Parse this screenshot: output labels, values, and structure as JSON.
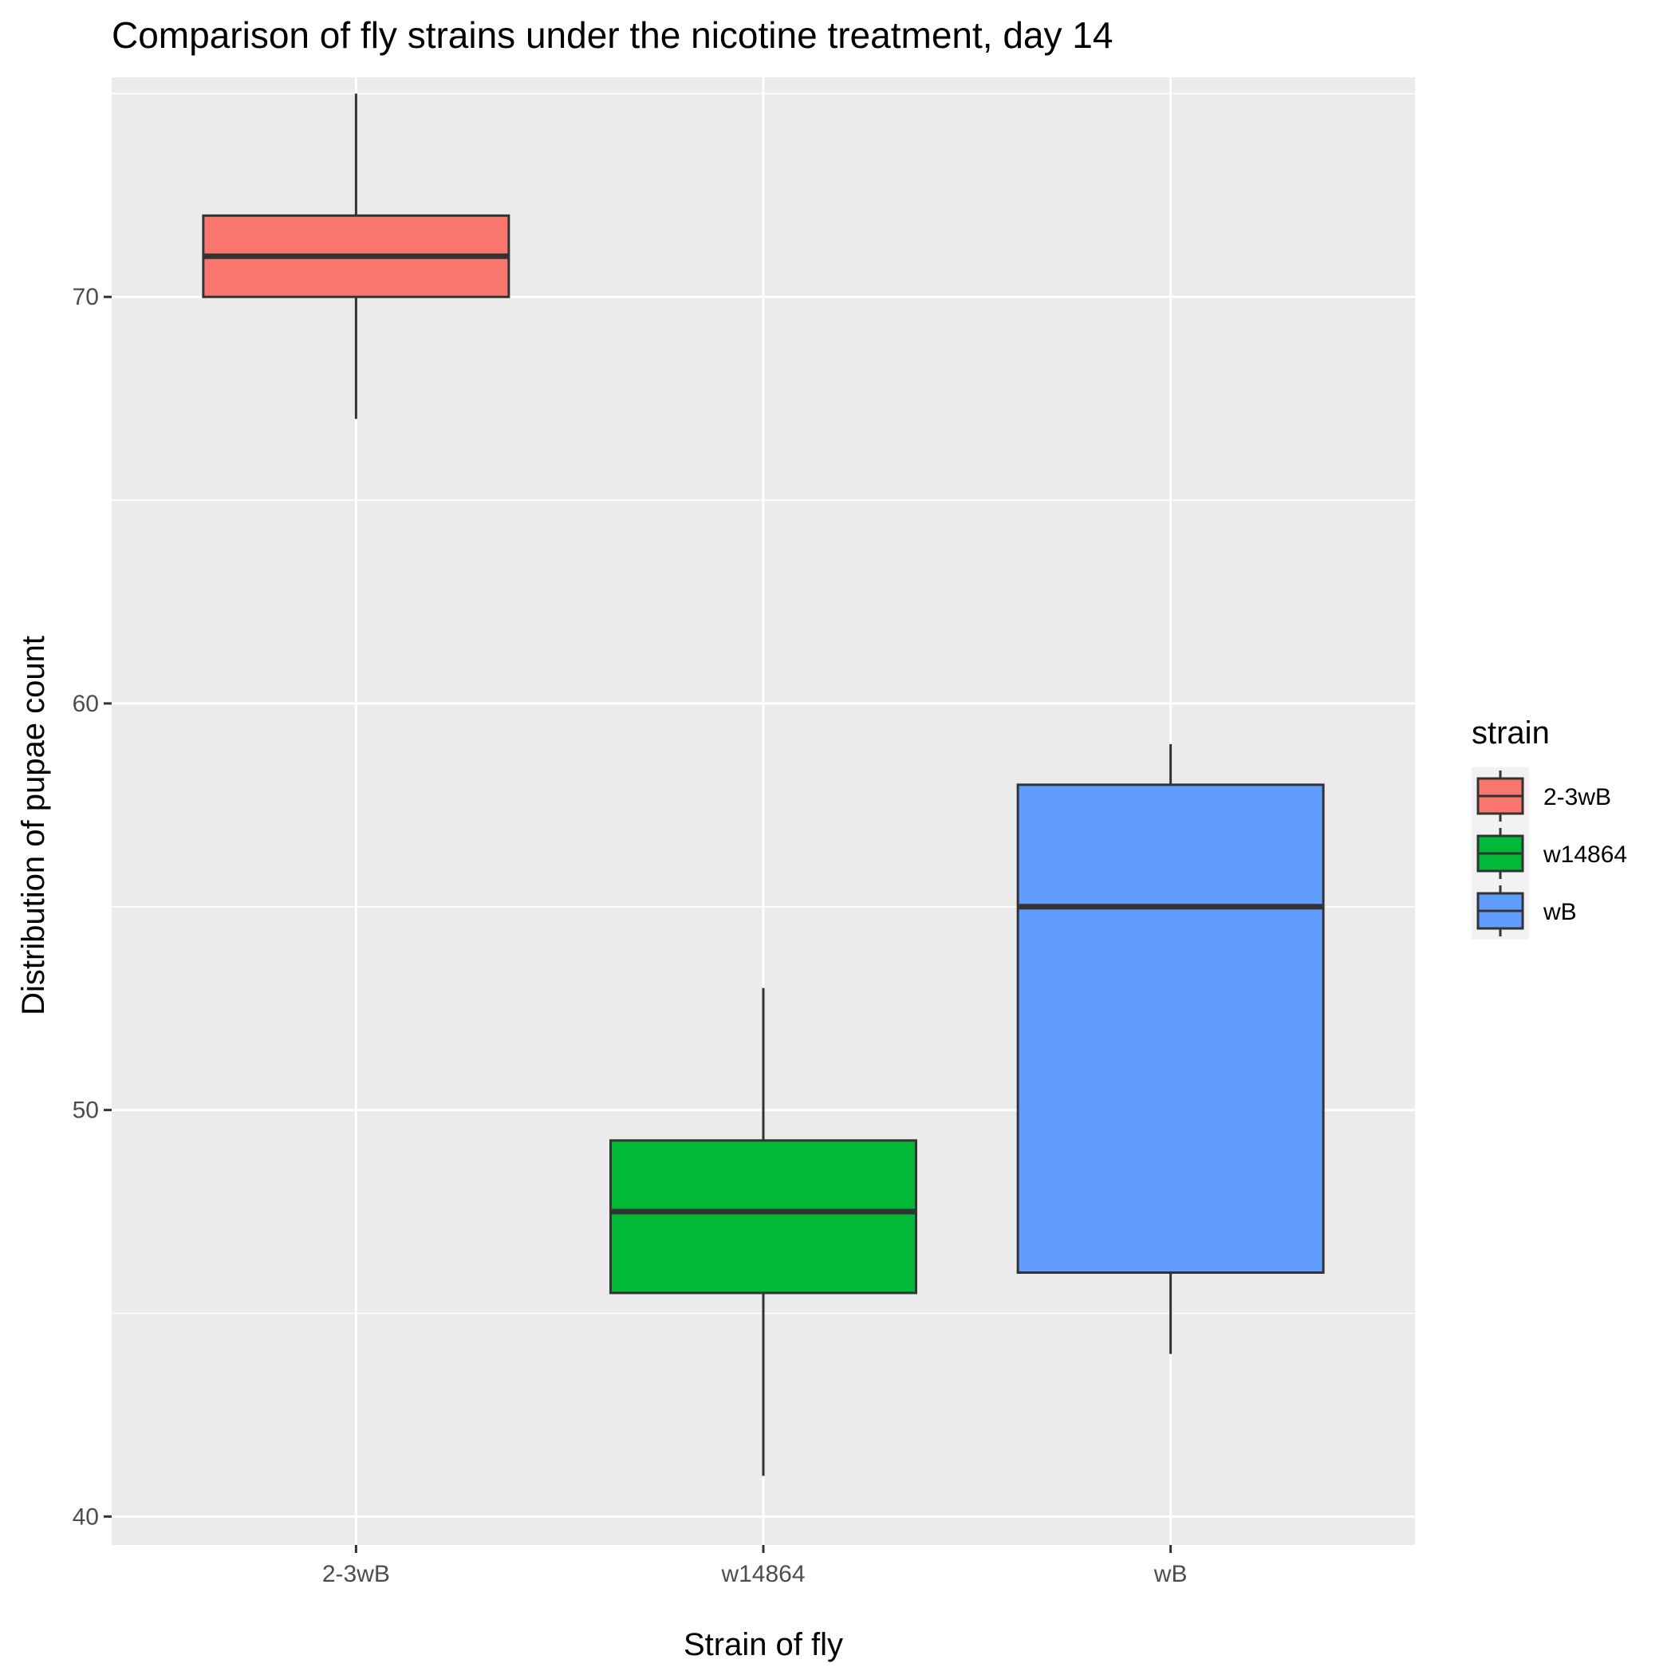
{
  "chart_data": {
    "type": "boxplot",
    "title": "Comparison of fly strains under the nicotine treatment, day 14",
    "xlabel": "Strain of fly",
    "ylabel": "Distribution of pupae count",
    "categories": [
      "2-3wB",
      "w14864",
      "wB"
    ],
    "ylim": [
      39.3,
      75.4
    ],
    "yticks": [
      40,
      50,
      60,
      70
    ],
    "ytick_labels": [
      "40",
      "50",
      "60",
      "70"
    ],
    "grid": true,
    "legend": {
      "title": "strain",
      "position": "right",
      "entries": [
        "2-3wB",
        "w14864",
        "wB"
      ]
    },
    "series": [
      {
        "category": "2-3wB",
        "whisker_low": 67,
        "q1": 70,
        "median": 71,
        "q3": 72,
        "whisker_high": 75,
        "color": "#F8766D"
      },
      {
        "category": "w14864",
        "whisker_low": 41,
        "q1": 45.5,
        "median": 47.5,
        "q3": 49.25,
        "whisker_high": 53,
        "color": "#00BA38"
      },
      {
        "category": "wB",
        "whisker_low": 44,
        "q1": 46,
        "median": 55,
        "q3": 58,
        "whisker_high": 59,
        "color": "#619CFF"
      }
    ],
    "colors": {
      "panel_background": "#EBEBEB",
      "grid_line": "#FFFFFF",
      "box_outline": "#333333"
    }
  }
}
